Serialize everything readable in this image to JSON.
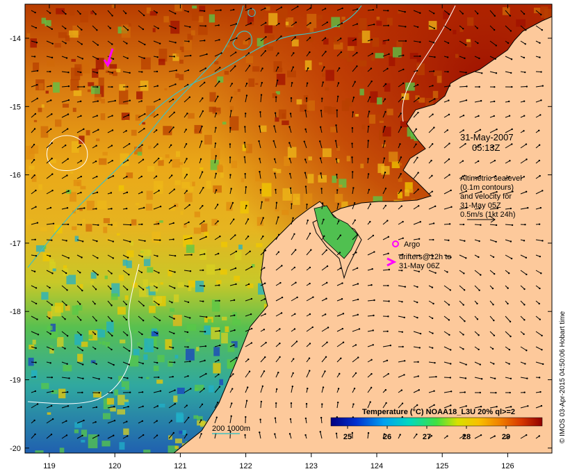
{
  "map": {
    "timestamp_line1": "31-May-2007",
    "timestamp_line2": "05:13Z",
    "x_ticks": [
      "119",
      "120",
      "121",
      "122",
      "123",
      "124",
      "125",
      "126"
    ],
    "y_ticks": [
      "-14",
      "-15",
      "-16",
      "-17",
      "-18",
      "-19",
      "-20"
    ],
    "legend_altimetry": [
      "Altimetric sealevel",
      "(0.1m contours)",
      "and velocity for",
      "31-May 05Z",
      "0.5m/s (1kt 24h)"
    ],
    "argo_label": "Argo",
    "drifters_line1": "drifters@12h to",
    "drifters_line2": "31-May 06Z",
    "bathy_label": "200  1000m",
    "colorbar_title": "Temperature (°C) NOAA18_L3U 20% ql>=2",
    "colorbar_ticks": [
      "25",
      "26",
      "27",
      "28",
      "29"
    ],
    "credit": "© IMOS 03-Apr-2015 04:50:06 Hobart time"
  },
  "colors": {
    "land": "#fdc99b",
    "warm_dark": "#a01000",
    "warm": "#d86a08",
    "mid_orange": "#e8a010",
    "yellow": "#f0c800",
    "green": "#48c848",
    "cyan": "#20b0c8",
    "blue": "#1030a0",
    "drifter": "#ff00ff",
    "bathy": "#40c0c0"
  },
  "icons": [
    "argo-circle-icon",
    "drifter-arrow-icon",
    "velocity-arrow-icon"
  ]
}
